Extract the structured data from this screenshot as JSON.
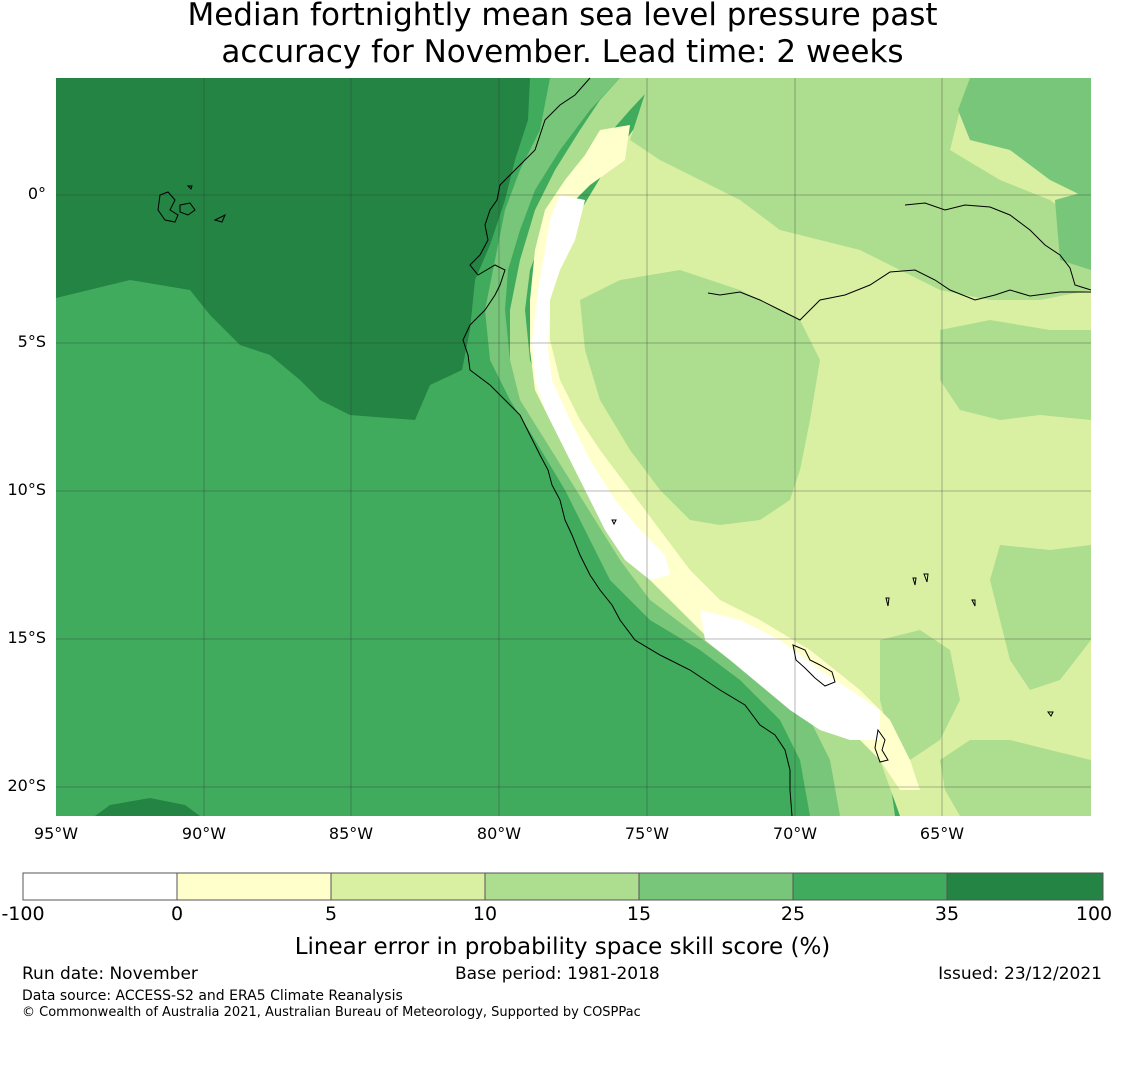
{
  "title": {
    "line1": "Median fortnightly mean sea level pressure past",
    "line2": "accuracy for November. Lead time: 2 weeks"
  },
  "map": {
    "lat_labels": [
      "0°",
      "5°S",
      "10°S",
      "15°S",
      "20°S"
    ],
    "lon_labels": [
      "95°W",
      "90°W",
      "85°W",
      "80°W",
      "75°W",
      "70°W",
      "65°W"
    ],
    "lon_range": [
      -95,
      -60
    ],
    "lat_range": [
      -21,
      4
    ],
    "grid": true,
    "coastline_color": "#000000"
  },
  "colorbar": {
    "title": "Linear error in probability space skill score (%)",
    "ticks": [
      "-100",
      "0",
      "5",
      "10",
      "15",
      "25",
      "35",
      "100"
    ],
    "colors": [
      "#ffffff",
      "#ffffcc",
      "#d9f0a3",
      "#addd8e",
      "#78c679",
      "#41ab5d",
      "#238443"
    ]
  },
  "footer": {
    "run_date": "Run date: November",
    "base_period": "Base period: 1981-2018",
    "issued": "Issued: 23/12/2021",
    "data_source": "Data source: ACCESS-S2 and ERA5 Climate Reanalysis",
    "copyright": "© Commonwealth of Australia 2021, Australian Bureau of Meteorology, Supported by COSPPac"
  }
}
